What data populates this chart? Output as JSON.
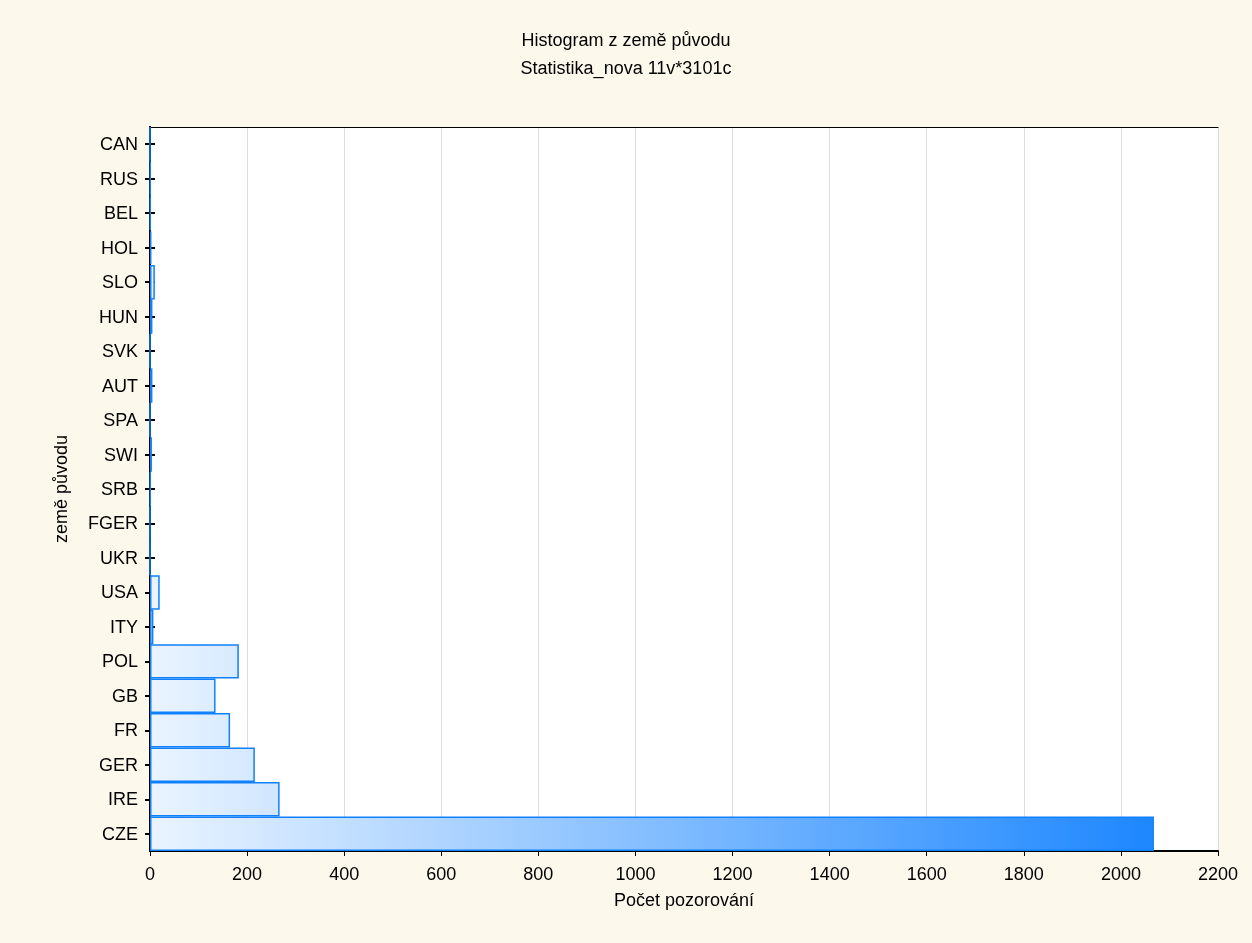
{
  "chart_data": {
    "type": "bar",
    "orientation": "horizontal",
    "title": "Histogram z země původu",
    "subtitle": "Statistika_nova 11v*3101c",
    "xlabel": "Počet pozorování",
    "ylabel": "země původu",
    "categories": [
      "CAN",
      "RUS",
      "BEL",
      "HOL",
      "SLO",
      "HUN",
      "SVK",
      "AUT",
      "SPA",
      "SWI",
      "SRB",
      "FGER",
      "UKR",
      "USA",
      "ITY",
      "POL",
      "GB",
      "FR",
      "GER",
      "IRE",
      "CZE"
    ],
    "values": [
      0,
      1,
      1,
      3,
      10,
      5,
      0,
      5,
      0,
      4,
      1,
      0,
      0,
      20,
      7,
      183,
      135,
      165,
      216,
      267,
      2068
    ],
    "color": "#1080ff",
    "xlim": [
      0,
      2200
    ],
    "xticks": [
      0,
      200,
      400,
      600,
      800,
      1000,
      1200,
      1400,
      1600,
      1800,
      2000,
      2200
    ],
    "grid": "x"
  }
}
